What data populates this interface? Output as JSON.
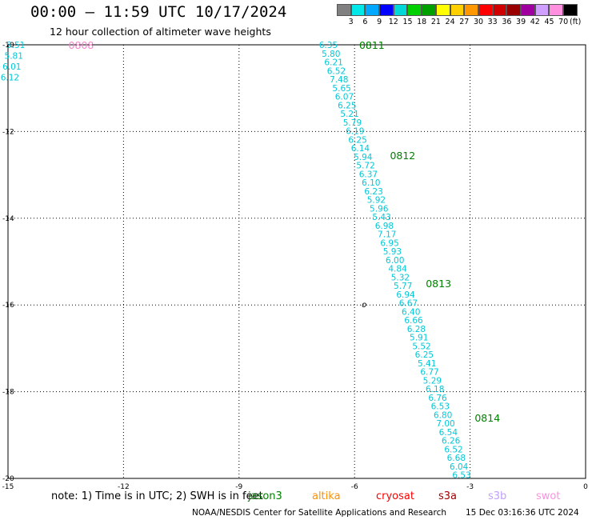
{
  "header": {
    "title": "00:00 – 11:59 UTC 10/17/2024",
    "subtitle": "12 hour collection of altimeter wave heights"
  },
  "colorbar": {
    "colors": [
      "#808080",
      "#00e8e8",
      "#00a8ff",
      "#0000ff",
      "#00d8d8",
      "#00d000",
      "#00a000",
      "#ffff00",
      "#ffd000",
      "#ff9800",
      "#ff0000",
      "#d00000",
      "#980000",
      "#a000a0",
      "#d0a0ff",
      "#ff90e0",
      "#000000"
    ],
    "labels": [
      "3",
      "6",
      "9",
      "12",
      "15",
      "18",
      "21",
      "24",
      "27",
      "30",
      "33",
      "36",
      "39",
      "42",
      "45",
      "70"
    ],
    "unit": "(ft)"
  },
  "chart_data": {
    "type": "scatter",
    "title": "00:00 – 11:59 UTC 10/17/2024",
    "subtitle": "12 hour collection of altimeter wave heights",
    "xlim": [
      -15,
      0
    ],
    "ylim": [
      -20,
      -10
    ],
    "x_ticks": [
      "-15",
      "-12",
      "-9",
      "-6",
      "-3",
      "0"
    ],
    "y_ticks": [
      "-10",
      "-12",
      "-14",
      "-16",
      "-18",
      "-20"
    ],
    "grid": true,
    "units": "ft",
    "track_main": {
      "x_start": -6.68,
      "y_start": -10.0,
      "x_end": -3.22,
      "y_end": -19.92,
      "color": "#00c8d8",
      "values": [
        "6.35",
        "5.80",
        "6.21",
        "6.52",
        "7.48",
        "5.65",
        "6.07",
        "6.25",
        "5.21",
        "5.79",
        "6.19",
        "6.25",
        "6.14",
        "5.94",
        "5.72",
        "6.37",
        "6.10",
        "6.23",
        "5.92",
        "5.96",
        "5.43",
        "6.98",
        "7.17",
        "6.95",
        "5.93",
        "6.00",
        "4.84",
        "5.32",
        "5.77",
        "6.94",
        "6.67",
        "6.40",
        "6.66",
        "6.28",
        "5.91",
        "5.52",
        "6.25",
        "5.41",
        "6.77",
        "5.29",
        "6.18",
        "6.76",
        "6.53",
        "6.80",
        "7.00",
        "6.54",
        "6.26",
        "6.52",
        "6.68",
        "6.04",
        "6.53"
      ]
    },
    "track_upper_left": {
      "x_start": -14.8,
      "y_start": -10.0,
      "x_end": -14.95,
      "y_end": -10.75,
      "color": "#00c8d8",
      "values": [
        "5.51",
        "5.81",
        "6.01",
        "6.12"
      ]
    },
    "time_labels": [
      {
        "text": "0808",
        "x": -13.1,
        "y": -10.0,
        "color": "#ff80d0"
      },
      {
        "text": "0811",
        "x": -5.55,
        "y": -10.0,
        "color": "#008000"
      },
      {
        "text": "0812",
        "x": -4.75,
        "y": -12.55,
        "color": "#008000"
      },
      {
        "text": "0813",
        "x": -3.82,
        "y": -15.5,
        "color": "#008000"
      },
      {
        "text": "0814",
        "x": -2.55,
        "y": -18.6,
        "color": "#008000"
      }
    ],
    "marker": {
      "text": "o",
      "x": -5.75,
      "y": -16.0
    }
  },
  "note": "note: 1) Time is in UTC; 2) SWH is in feet",
  "satellites": [
    {
      "name": "jason3",
      "color": "#008000"
    },
    {
      "name": "altika",
      "color": "#ff9000"
    },
    {
      "name": "cryosat",
      "color": "#ff0000"
    },
    {
      "name": "s3a",
      "color": "#a00000"
    },
    {
      "name": "s3b",
      "color": "#c0a0ff"
    },
    {
      "name": "swot",
      "color": "#ff90e0"
    }
  ],
  "footer": {
    "credit": "NOAA/NESDIS Center for Satellite Applications and Research",
    "timestamp": "15 Dec 03:16:36 UTC 2024"
  }
}
